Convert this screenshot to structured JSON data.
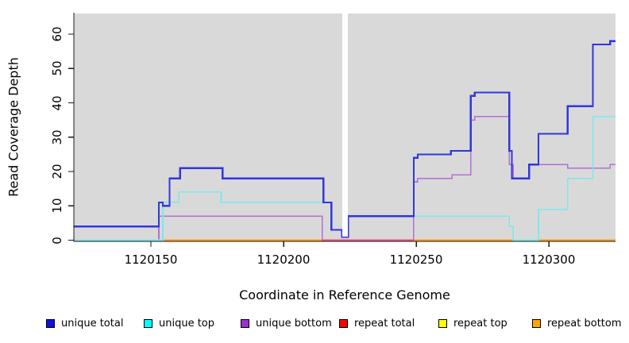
{
  "chart_data": {
    "type": "line",
    "subtype": "step-coverage-plot",
    "title": "",
    "xlabel": "Coordinate in Reference Genome",
    "ylabel": "Read Coverage Depth",
    "xlim": [
      1120121,
      1120325
    ],
    "ylim": [
      0,
      66
    ],
    "x_ticks": [
      1120150,
      1120200,
      1120250,
      1120300
    ],
    "x_tick_labels": [
      "1120150",
      "1120200",
      "1120250",
      "1120300"
    ],
    "y_ticks": [
      0,
      10,
      20,
      30,
      40,
      50,
      60
    ],
    "y_tick_labels": [
      "0",
      "10",
      "20",
      "30",
      "40",
      "50",
      "60"
    ],
    "grid": false,
    "panel_background": "#d9d9d9",
    "legend_position": "bottom",
    "gap": {
      "x_start": 1120222.1,
      "x_end": 1120224.2,
      "color": "#ffffff",
      "note": "white masked column over plot"
    },
    "zero_line_overlays": [
      {
        "x_start": 1120121,
        "x_end": 1120153,
        "color": "#d95b80"
      },
      {
        "x_start": 1120214.5,
        "x_end": 1120249,
        "color": "#d95b80"
      }
    ],
    "draw_order": [
      "repeat top",
      "repeat total",
      "repeat bottom",
      "unique bottom",
      "unique top",
      "unique total"
    ],
    "series": [
      {
        "name": "unique total",
        "legend_color": "#0f10e0",
        "line_color": "#3136de",
        "line_width": 2.2,
        "steps": [
          [
            1120121,
            4
          ],
          [
            1120153,
            11
          ],
          [
            1120154.5,
            10
          ],
          [
            1120157,
            18
          ],
          [
            1120161,
            21
          ],
          [
            1120177,
            18
          ],
          [
            1120215,
            11
          ],
          [
            1120218,
            3
          ],
          [
            1120222,
            1
          ],
          [
            1120224.3,
            7
          ],
          [
            1120249,
            24
          ],
          [
            1120250.5,
            25
          ],
          [
            1120263,
            26
          ],
          [
            1120270.5,
            42
          ],
          [
            1120272,
            43
          ],
          [
            1120285,
            26
          ],
          [
            1120286,
            18
          ],
          [
            1120292.5,
            22
          ],
          [
            1120296,
            31
          ],
          [
            1120307,
            39
          ],
          [
            1120316.5,
            57
          ],
          [
            1120323,
            58
          ]
        ]
      },
      {
        "name": "unique top",
        "legend_color": "#00ffff",
        "line_color": "#7de8ec",
        "line_width": 1.6,
        "steps": [
          [
            1120121,
            0
          ],
          [
            1120154.5,
            11
          ],
          [
            1120160.5,
            14
          ],
          [
            1120176.5,
            11
          ],
          [
            1120218,
            3
          ],
          [
            1120222,
            1
          ],
          [
            1120224.3,
            7
          ],
          [
            1120285,
            4
          ],
          [
            1120286.5,
            0
          ],
          [
            1120296,
            9
          ],
          [
            1120307,
            18
          ],
          [
            1120316.5,
            36
          ]
        ]
      },
      {
        "name": "unique bottom",
        "legend_color": "#9932cc",
        "line_color": "#b36fd6",
        "line_width": 1.6,
        "steps": [
          [
            1120121,
            0
          ],
          [
            1120153,
            7
          ],
          [
            1120214.5,
            0
          ],
          [
            1120249,
            17
          ],
          [
            1120250.5,
            18
          ],
          [
            1120263.5,
            19
          ],
          [
            1120270.5,
            35
          ],
          [
            1120272,
            36
          ],
          [
            1120285,
            22
          ],
          [
            1120286.5,
            18
          ],
          [
            1120292.5,
            22
          ],
          [
            1120307,
            21
          ],
          [
            1120323,
            22
          ]
        ]
      },
      {
        "name": "repeat total",
        "legend_color": "#ff0000",
        "line_color": "#e05878",
        "line_width": 1.5,
        "steps": [
          [
            1120121,
            0
          ]
        ]
      },
      {
        "name": "repeat top",
        "legend_color": "#ffff00",
        "line_color": "#ffe24d",
        "line_width": 1.5,
        "steps": [
          [
            1120121,
            0
          ]
        ]
      },
      {
        "name": "repeat bottom",
        "legend_color": "#ffa500",
        "line_color": "#ff9d1f",
        "line_width": 1.8,
        "steps": [
          [
            1120121,
            0
          ]
        ]
      }
    ]
  }
}
